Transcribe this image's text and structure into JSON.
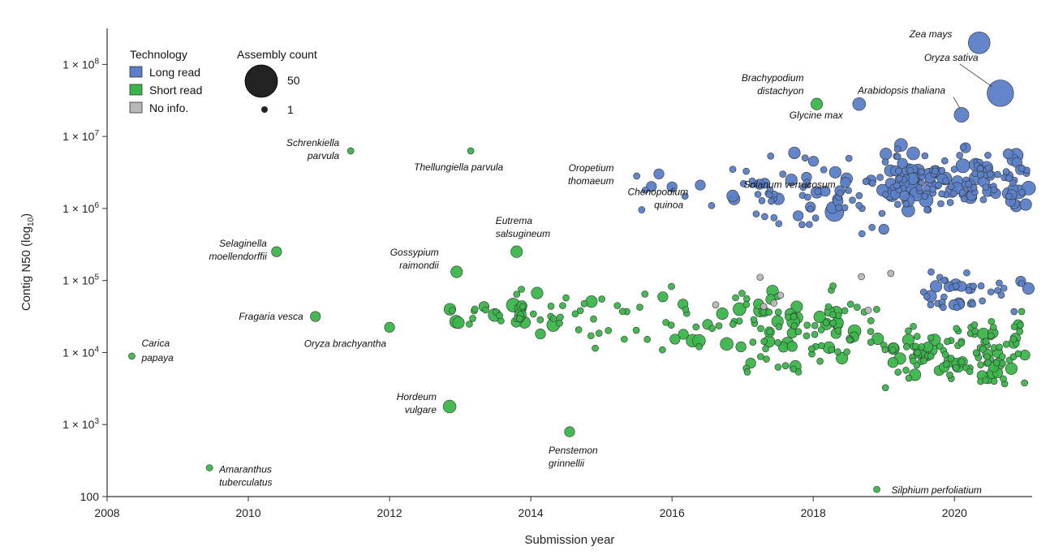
{
  "chart_data": {
    "type": "scatter",
    "xlabel": "Submission year",
    "ylabel": "Contig N50 (log10)",
    "xlim": [
      2008,
      2021.1
    ],
    "ylim_log10": [
      2,
      8.5
    ],
    "scale_y": "log",
    "grid": false,
    "x_ticks": [
      2008,
      2010,
      2012,
      2014,
      2016,
      2018,
      2020
    ],
    "x_tick_labels": [
      "2008",
      "2010",
      "2012",
      "2014",
      "2016",
      "2018",
      "2020"
    ],
    "y_ticks_log10": [
      2,
      3,
      4,
      5,
      6,
      7,
      8
    ],
    "y_tick_labels": [
      "100",
      "1 × 10^3",
      "1 × 10^4",
      "1 × 10^5",
      "1 × 10^6",
      "1 × 10^7",
      "1 × 10^8"
    ],
    "legend": {
      "placement": "top-left",
      "technology_title": "Technology",
      "technology": [
        {
          "label": "Long read",
          "color": "#5b7fc8"
        },
        {
          "label": "Short read",
          "color": "#3bb54a"
        },
        {
          "label": "No info.",
          "color": "#b8b8b8"
        }
      ],
      "size_title": "Assembly count",
      "sizes": [
        {
          "label": "50",
          "count": 50
        },
        {
          "label": "1",
          "count": 1
        }
      ]
    },
    "colors": {
      "long": "#5b7fc8",
      "short": "#3bb54a",
      "noinfo": "#b8b8b8",
      "stroke": "#333333"
    },
    "labeled_points": [
      {
        "label": "Carica papaya",
        "x": 2008.35,
        "y": 3.95,
        "tech": "short",
        "count": 1
      },
      {
        "label": "Amaranthus tuberculatus",
        "x": 2009.45,
        "y": 2.4,
        "tech": "short",
        "count": 1
      },
      {
        "label": "Selaginella moellendorffii",
        "x": 2010.4,
        "y": 5.4,
        "tech": "short",
        "count": 2
      },
      {
        "label": "Fragaria vesca",
        "x": 2010.95,
        "y": 4.5,
        "tech": "short",
        "count": 2
      },
      {
        "label": "Schrenkiella parvula",
        "x": 2011.45,
        "y": 6.8,
        "tech": "short",
        "count": 1
      },
      {
        "label": "Oryza brachyantha",
        "x": 2012.0,
        "y": 4.35,
        "tech": "short",
        "count": 2
      },
      {
        "label": "Thellungiella parvula",
        "x": 2013.15,
        "y": 6.8,
        "tech": "short",
        "count": 1
      },
      {
        "label": "Gossypium raimondii",
        "x": 2012.95,
        "y": 5.12,
        "tech": "short",
        "count": 3
      },
      {
        "label": "Eutrema salsugineum",
        "x": 2013.8,
        "y": 5.4,
        "tech": "short",
        "count": 3
      },
      {
        "label": "Hordeum vulgare",
        "x": 2012.85,
        "y": 3.25,
        "tech": "short",
        "count": 4
      },
      {
        "label": "Penstemon grinnellii",
        "x": 2014.55,
        "y": 2.9,
        "tech": "short",
        "count": 2
      },
      {
        "label": "Oropetium thomaeum",
        "x": 2015.5,
        "y": 6.45,
        "tech": "long",
        "count": 1
      },
      {
        "label": "Chenopodium quinoa",
        "x": 2016.0,
        "y": 6.3,
        "tech": "long",
        "count": 2
      },
      {
        "label": "Brachypodium distachyon",
        "x": 2018.05,
        "y": 7.45,
        "tech": "short",
        "count": 3
      },
      {
        "label": "Glycine max",
        "x": 2018.65,
        "y": 7.45,
        "tech": "long",
        "count": 4
      },
      {
        "label": "Solanum verrucosum",
        "x": 2018.3,
        "y": 5.95,
        "tech": "long",
        "count": 12
      },
      {
        "label": "Arabidopsis thaliana",
        "x": 2020.1,
        "y": 7.3,
        "tech": "long",
        "count": 6
      },
      {
        "label": "Zea mays",
        "x": 2020.35,
        "y": 8.3,
        "tech": "long",
        "count": 18
      },
      {
        "label": "Oryza sativa",
        "x": 2020.65,
        "y": 7.6,
        "tech": "long",
        "count": 30
      },
      {
        "label": "Silphium perfoliatium",
        "x": 2018.9,
        "y": 2.1,
        "tech": "short",
        "count": 1
      }
    ]
  }
}
